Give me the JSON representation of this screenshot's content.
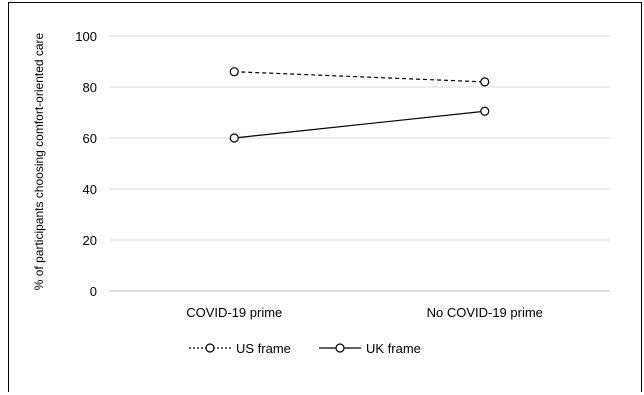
{
  "chart_data": {
    "type": "line",
    "categories": [
      "COVID-19 prime",
      "No COVID-19 prime"
    ],
    "series": [
      {
        "name": "US frame",
        "values": [
          86,
          82
        ],
        "style": "dotted",
        "color": "#000000"
      },
      {
        "name": "UK frame",
        "values": [
          60,
          70.5
        ],
        "style": "solid",
        "color": "#000000"
      }
    ],
    "xlabel": "",
    "ylabel": "% of participants choosing comfort-oriented care",
    "ylim": [
      0,
      100
    ],
    "yticks": [
      0,
      20,
      40,
      60,
      80,
      100
    ],
    "grid": true,
    "legend_position": "bottom"
  }
}
